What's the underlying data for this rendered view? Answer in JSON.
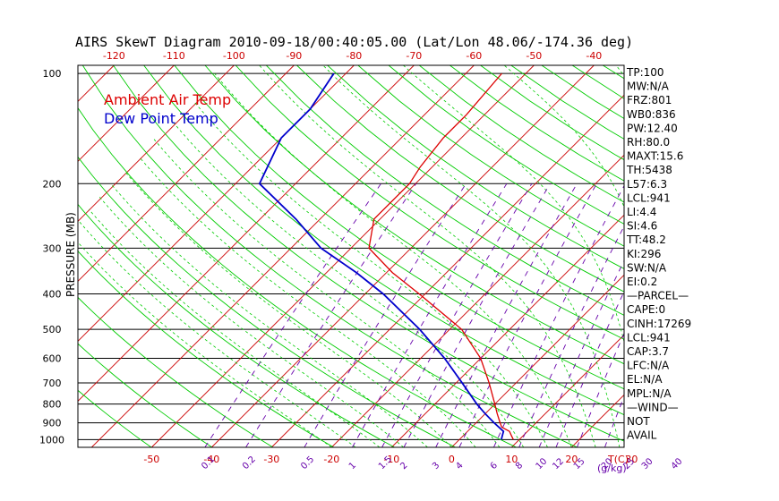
{
  "colors": {
    "ambient": "#dd0000",
    "dewpoint": "#0000cc",
    "dry_adiabat": "#cc0000",
    "moist_adiabat": "#00cc00",
    "mixing_ratio": "#6600aa",
    "isobar": "#000000",
    "temp_ticks": "#cc0000",
    "mixing_labels": "#6600aa"
  },
  "chart_data": {
    "type": "line",
    "title": "AIRS SkewT Diagram 2010-09-18/00:40:05.00 (Lat/Lon 48.06/-174.36 deg)",
    "ylabel": "PRESSURE (MB)",
    "xlabel": "T(C)",
    "mixing_unit": "(g/kg)",
    "legend": [
      "Ambient Air Temp",
      "Dew Point Temp"
    ],
    "pressure_levels": [
      100,
      200,
      300,
      400,
      500,
      600,
      700,
      800,
      900,
      1000
    ],
    "temp_ticks_bottom": [
      -50,
      -40,
      -30,
      -20,
      -10,
      0,
      10,
      20,
      30
    ],
    "temp_ticks_top": [
      -120,
      -110,
      -100,
      -90,
      -80,
      -70,
      -60,
      -50,
      -40
    ],
    "mixing_ratios": [
      "0.1",
      "0.2",
      "0.5",
      "1",
      "1.5",
      "2",
      "3",
      "4",
      "6",
      "8",
      "10",
      "12",
      "15",
      "20",
      "25",
      "30",
      "40"
    ],
    "series": [
      {
        "name": "Ambient Air Temp",
        "points": [
          {
            "p": 1000,
            "t": 9
          },
          {
            "p": 975,
            "t": 8
          },
          {
            "p": 950,
            "t": 7
          },
          {
            "p": 925,
            "t": 5
          },
          {
            "p": 900,
            "t": 4
          },
          {
            "p": 850,
            "t": 2
          },
          {
            "p": 800,
            "t": 0
          },
          {
            "p": 700,
            "t": -4.5
          },
          {
            "p": 600,
            "t": -10
          },
          {
            "p": 500,
            "t": -18
          },
          {
            "p": 400,
            "t": -31
          },
          {
            "p": 350,
            "t": -39
          },
          {
            "p": 300,
            "t": -47
          },
          {
            "p": 250,
            "t": -51
          },
          {
            "p": 200,
            "t": -51
          },
          {
            "p": 180,
            "t": -52
          },
          {
            "p": 150,
            "t": -53
          },
          {
            "p": 130,
            "t": -53
          },
          {
            "p": 100,
            "t": -54
          }
        ]
      },
      {
        "name": "Dew Point Temp",
        "points": [
          {
            "p": 1000,
            "t": 7
          },
          {
            "p": 975,
            "t": 6.5
          },
          {
            "p": 950,
            "t": 6
          },
          {
            "p": 900,
            "t": 3
          },
          {
            "p": 850,
            "t": 0
          },
          {
            "p": 800,
            "t": -3
          },
          {
            "p": 700,
            "t": -9
          },
          {
            "p": 600,
            "t": -16
          },
          {
            "p": 500,
            "t": -25
          },
          {
            "p": 400,
            "t": -37
          },
          {
            "p": 350,
            "t": -45
          },
          {
            "p": 300,
            "t": -55
          },
          {
            "p": 250,
            "t": -64
          },
          {
            "p": 200,
            "t": -76
          },
          {
            "p": 150,
            "t": -80
          },
          {
            "p": 125,
            "t": -80
          },
          {
            "p": 100,
            "t": -82
          }
        ]
      }
    ],
    "stats": [
      "TP:100",
      "MW:N/A",
      "FRZ:801",
      "WB0:836",
      "PW:12.40",
      "RH:80.0",
      "MAXT:15.6",
      "TH:5438",
      "L57:6.3",
      "LCL:941",
      "LI:4.4",
      "SI:4.6",
      "TT:48.2",
      "KI:296",
      "SW:N/A",
      "EI:0.2",
      "—PARCEL—",
      "CAPE:0",
      "CINH:17269",
      "LCL:941",
      "CAP:3.7",
      "LFC:N/A",
      "EL:N/A",
      "MPL:N/A",
      "—WIND—",
      "NOT",
      "AVAIL"
    ]
  }
}
